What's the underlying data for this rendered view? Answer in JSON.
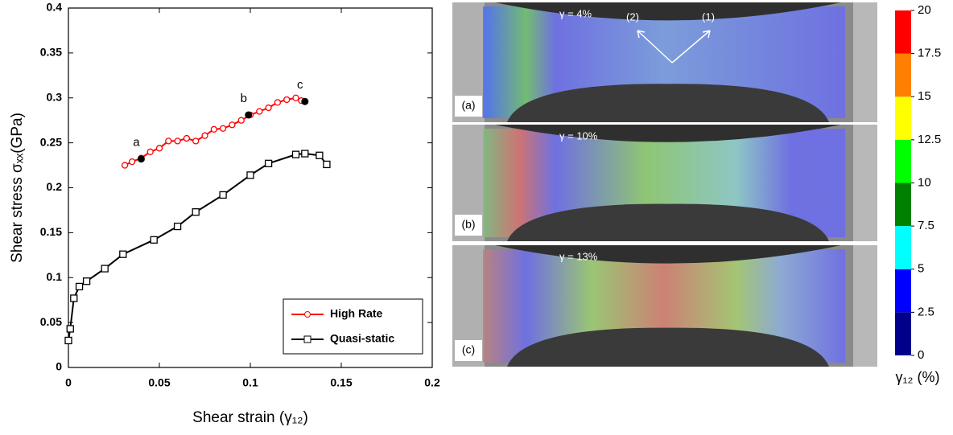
{
  "chart_data": {
    "type": "line",
    "xlabel": "Shear strain (γ₁₂)",
    "ylabel": "Shear stress σₓₓ(GPa)",
    "xlim": [
      0,
      0.2
    ],
    "xticks": [
      0,
      0.05,
      0.1,
      0.15,
      0.2
    ],
    "ylim": [
      0,
      0.4
    ],
    "yticks": [
      0,
      0.05,
      0.1,
      0.15,
      0.2,
      0.25,
      0.3,
      0.35,
      0.4
    ],
    "legend": "lower right",
    "series": [
      {
        "name": "High Rate",
        "color": "#ff0000",
        "marker": "circle",
        "x": [
          0.031,
          0.035,
          0.04,
          0.045,
          0.05,
          0.055,
          0.06,
          0.065,
          0.07,
          0.075,
          0.08,
          0.085,
          0.09,
          0.095,
          0.1,
          0.105,
          0.11,
          0.115,
          0.12,
          0.125,
          0.128
        ],
        "values": [
          0.225,
          0.229,
          0.233,
          0.24,
          0.244,
          0.252,
          0.252,
          0.255,
          0.252,
          0.258,
          0.265,
          0.266,
          0.27,
          0.275,
          0.281,
          0.285,
          0.289,
          0.295,
          0.298,
          0.3,
          0.297
        ]
      },
      {
        "name": "Quasi-static",
        "color": "#000000",
        "marker": "square",
        "x": [
          0,
          0.001,
          0.003,
          0.006,
          0.01,
          0.02,
          0.03,
          0.047,
          0.06,
          0.07,
          0.085,
          0.1,
          0.11,
          0.125,
          0.13,
          0.138,
          0.142
        ],
        "values": [
          0.03,
          0.043,
          0.077,
          0.09,
          0.096,
          0.11,
          0.126,
          0.142,
          0.157,
          0.173,
          0.192,
          0.214,
          0.227,
          0.237,
          0.238,
          0.236,
          0.226
        ]
      }
    ],
    "points": [
      {
        "label": "a",
        "x": 0.04,
        "y": 0.232
      },
      {
        "label": "b",
        "x": 0.099,
        "y": 0.281
      },
      {
        "label": "c",
        "x": 0.13,
        "y": 0.296
      }
    ]
  },
  "strain_maps": [
    {
      "panel": "(a)",
      "annotation": "γ = 4%"
    },
    {
      "panel": "(b)",
      "annotation": "γ = 10%"
    },
    {
      "panel": "(c)",
      "annotation": "γ = 13%"
    }
  ],
  "directions": [
    "(2)",
    "(1)"
  ],
  "colorbar": {
    "label": "γ₁₂ (%)",
    "lim": [
      0,
      20
    ],
    "ticks": [
      0,
      2.5,
      5,
      7.5,
      10,
      12.5,
      15,
      17.5,
      20
    ],
    "colors": [
      "#00008b",
      "#0000ff",
      "#00ffff",
      "#008000",
      "#00ff00",
      "#ffff00",
      "#ff8000",
      "#ff0000"
    ]
  }
}
